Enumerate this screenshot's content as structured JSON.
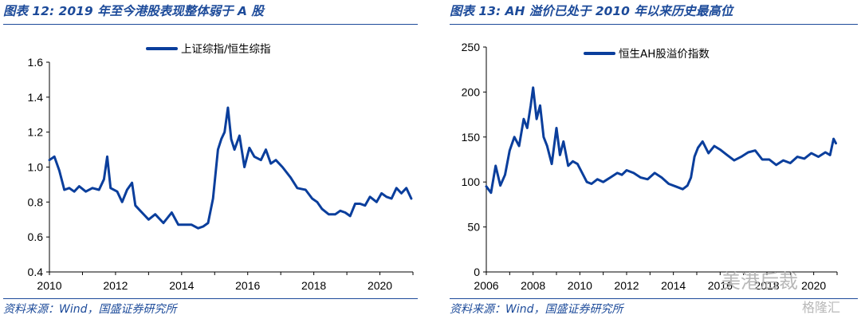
{
  "left": {
    "title": "图表 12:  2019 年至今港股表现整体弱于 A 股",
    "source": "资料来源：Wind，国盛证券研究所"
  },
  "right": {
    "title": "图表 13:  AH 溢价已处于 2010 年以来历史最高位",
    "source": "资料来源：Wind，国盛证券研究所"
  },
  "watermark": {
    "main": "美港后裁",
    "sub": "格隆汇"
  },
  "colors": {
    "accent": "#1d4b9a",
    "series": "#0a3e9c"
  },
  "chart_data": [
    {
      "type": "line",
      "legend_position": "top-center",
      "grid": false,
      "xlim": [
        2010,
        2021
      ],
      "ylim": [
        0.4,
        1.6
      ],
      "x_ticks": [
        "2010",
        "2012",
        "2014",
        "2016",
        "2018",
        "2020"
      ],
      "y_ticks": [
        "0.4",
        "0.6",
        "0.8",
        "1.0",
        "1.2",
        "1.4",
        "1.6"
      ],
      "series": [
        {
          "name": "上证综指/恒生综指",
          "x": [
            2010.0,
            2010.15,
            2010.3,
            2010.45,
            2010.6,
            2010.75,
            2010.9,
            2011.1,
            2011.3,
            2011.5,
            2011.65,
            2011.75,
            2011.85,
            2012.05,
            2012.2,
            2012.35,
            2012.5,
            2012.6,
            2012.75,
            2012.9,
            2013.0,
            2013.2,
            2013.45,
            2013.7,
            2013.9,
            2014.1,
            2014.3,
            2014.5,
            2014.65,
            2014.8,
            2014.95,
            2015.1,
            2015.2,
            2015.3,
            2015.4,
            2015.5,
            2015.6,
            2015.75,
            2015.9,
            2016.05,
            2016.2,
            2016.4,
            2016.55,
            2016.7,
            2016.85,
            2017.05,
            2017.3,
            2017.5,
            2017.75,
            2017.95,
            2018.1,
            2018.25,
            2018.45,
            2018.65,
            2018.8,
            2018.95,
            2019.1,
            2019.25,
            2019.4,
            2019.55,
            2019.7,
            2019.9,
            2020.05,
            2020.2,
            2020.35,
            2020.5,
            2020.65,
            2020.8,
            2020.95
          ],
          "values": [
            1.04,
            1.06,
            0.98,
            0.87,
            0.88,
            0.86,
            0.89,
            0.86,
            0.88,
            0.87,
            0.93,
            1.06,
            0.88,
            0.86,
            0.8,
            0.87,
            0.91,
            0.78,
            0.75,
            0.72,
            0.7,
            0.73,
            0.68,
            0.74,
            0.67,
            0.67,
            0.67,
            0.65,
            0.66,
            0.68,
            0.82,
            1.1,
            1.16,
            1.2,
            1.34,
            1.16,
            1.1,
            1.18,
            1.0,
            1.11,
            1.06,
            1.04,
            1.1,
            1.02,
            1.04,
            1.0,
            0.94,
            0.88,
            0.87,
            0.82,
            0.8,
            0.76,
            0.73,
            0.73,
            0.75,
            0.74,
            0.72,
            0.79,
            0.79,
            0.78,
            0.83,
            0.8,
            0.85,
            0.83,
            0.82,
            0.88,
            0.85,
            0.88,
            0.82
          ]
        }
      ]
    },
    {
      "type": "line",
      "legend_position": "top-center",
      "grid": false,
      "xlim": [
        2006,
        2021
      ],
      "ylim": [
        0,
        250
      ],
      "x_ticks": [
        "2006",
        "2008",
        "2010",
        "2012",
        "2014",
        "2016",
        "2018",
        "2020"
      ],
      "y_ticks": [
        "0",
        "50",
        "100",
        "150",
        "200",
        "250"
      ],
      "series": [
        {
          "name": "恒生AH股溢价指数",
          "x": [
            2006.0,
            2006.2,
            2006.4,
            2006.6,
            2006.8,
            2007.0,
            2007.2,
            2007.4,
            2007.6,
            2007.75,
            2007.9,
            2008.0,
            2008.15,
            2008.3,
            2008.45,
            2008.6,
            2008.8,
            2009.0,
            2009.15,
            2009.3,
            2009.5,
            2009.7,
            2009.9,
            2010.1,
            2010.3,
            2010.5,
            2010.75,
            2011.0,
            2011.3,
            2011.6,
            2011.8,
            2012.0,
            2012.3,
            2012.6,
            2012.9,
            2013.2,
            2013.5,
            2013.8,
            2014.1,
            2014.4,
            2014.6,
            2014.75,
            2014.9,
            2015.05,
            2015.25,
            2015.5,
            2015.75,
            2016.0,
            2016.3,
            2016.6,
            2016.9,
            2017.2,
            2017.5,
            2017.8,
            2018.1,
            2018.4,
            2018.7,
            2019.0,
            2019.3,
            2019.6,
            2019.9,
            2020.2,
            2020.5,
            2020.7,
            2020.85,
            2020.95
          ],
          "values": [
            95,
            88,
            118,
            96,
            108,
            135,
            150,
            140,
            170,
            160,
            185,
            205,
            170,
            185,
            150,
            140,
            120,
            160,
            130,
            145,
            118,
            123,
            120,
            110,
            100,
            98,
            103,
            100,
            105,
            110,
            108,
            113,
            110,
            105,
            103,
            110,
            105,
            98,
            95,
            92,
            96,
            105,
            128,
            138,
            145,
            132,
            140,
            136,
            130,
            124,
            128,
            133,
            135,
            125,
            125,
            119,
            124,
            121,
            128,
            126,
            132,
            128,
            133,
            130,
            148,
            143
          ]
        }
      ]
    }
  ]
}
